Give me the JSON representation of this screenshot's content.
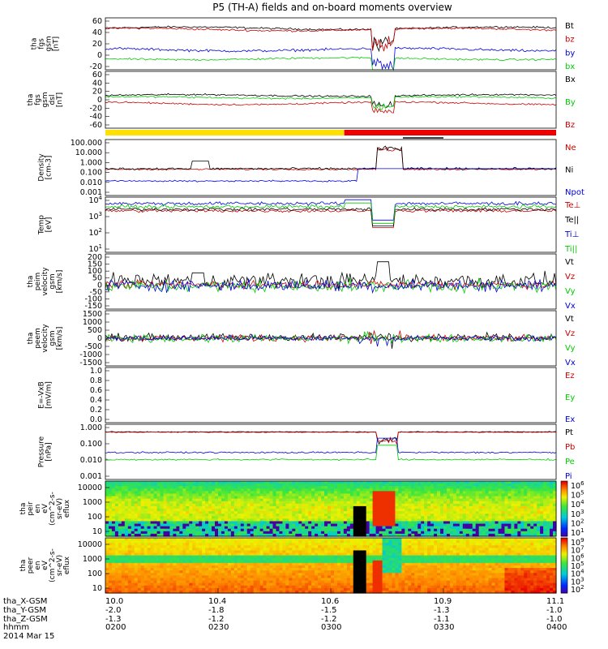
{
  "chart_data": {
    "type": "line",
    "title": "P5 (TH-A) fields and on-board moments overview",
    "panels": [
      {
        "id": "fgs_gsm",
        "ylabel": [
          "tha",
          "fgs",
          "gsm",
          "[nT]"
        ],
        "yticks": [
          "60",
          "40",
          "20",
          "0",
          "-20"
        ],
        "ylim": [
          -20,
          60
        ],
        "scale": "linear",
        "series": [
          {
            "name": "Bt",
            "color": "#000000",
            "base": 44,
            "amp": 2,
            "noise": 0.6
          },
          {
            "name": "bz",
            "color": "#cc0000",
            "base": 42,
            "amp": 2,
            "noise": 0.6
          },
          {
            "name": "by",
            "color": "#0000dd",
            "base": 11,
            "amp": 2,
            "noise": 0.8
          },
          {
            "name": "bx",
            "color": "#00cc00",
            "base": -3,
            "amp": 1.5,
            "noise": 0.6
          }
        ]
      },
      {
        "id": "fgs_dsl",
        "ylabel": [
          "tha",
          "fgs",
          "gsm",
          "dsl",
          "[nT]"
        ],
        "yticks": [
          "60",
          "40",
          "20",
          "0",
          "-20",
          "-40",
          "-60"
        ],
        "ylim": [
          -70,
          60
        ],
        "scale": "linear",
        "series": [
          {
            "name": "Bx",
            "color": "#000000",
            "base": 5,
            "amp": 2,
            "noise": 0.8
          },
          {
            "name": "By",
            "color": "#00cc00",
            "base": 0,
            "amp": 2,
            "noise": 0.8
          },
          {
            "name": "Bz",
            "color": "#cc0000",
            "base": -13,
            "amp": 3,
            "noise": 0.8
          }
        ]
      },
      {
        "id": "density",
        "ylabel": [
          "Density",
          "[cm-3]"
        ],
        "yticks": [
          "100.000",
          "10.000",
          "1.000",
          "0.100",
          "0.010",
          "0.001"
        ],
        "ylim": [
          0.001,
          100
        ],
        "scale": "log",
        "series": [
          {
            "name": "Ne",
            "color": "#cc0000",
            "base": 0.22,
            "noise": 0.08
          },
          {
            "name": "Ni",
            "color": "#000000",
            "base": 0.25,
            "noise": 0.12
          },
          {
            "name": "Npot",
            "color": "#0000dd",
            "base": 0.022,
            "noise": 0.02
          }
        ]
      },
      {
        "id": "temp",
        "ylabel": [
          "Temp",
          "[eV]"
        ],
        "yticks": [
          "10^4",
          "10^3",
          "10^2",
          "10^1"
        ],
        "ylim": [
          10,
          10000
        ],
        "scale": "log",
        "series": [
          {
            "name": "Te⊥",
            "color": "#cc0000",
            "base": 1800,
            "noise": 0.1
          },
          {
            "name": "Te||",
            "color": "#000000",
            "base": 2200,
            "noise": 0.1
          },
          {
            "name": "Ti⊥",
            "color": "#0000dd",
            "base": 4500,
            "noise": 0.12
          },
          {
            "name": "Ti||",
            "color": "#00cc00",
            "base": 3000,
            "noise": 0.12
          }
        ]
      },
      {
        "id": "peim_vel",
        "ylabel": [
          "tha",
          "peim",
          "velocity",
          "gsm",
          "[km/s]"
        ],
        "yticks": [
          "200",
          "150",
          "100",
          "50",
          "0",
          "-50",
          "-100",
          "-150"
        ],
        "ylim": [
          -150,
          200
        ],
        "scale": "linear",
        "series": [
          {
            "name": "Vt",
            "color": "#000000",
            "base": 30,
            "noise": 20
          },
          {
            "name": "Vz",
            "color": "#cc0000",
            "base": 5,
            "noise": 10
          },
          {
            "name": "Vy",
            "color": "#00cc00",
            "base": -5,
            "noise": 15
          },
          {
            "name": "Vx",
            "color": "#0000dd",
            "base": 0,
            "noise": 15
          }
        ]
      },
      {
        "id": "peem_vel",
        "ylabel": [
          "tha",
          "peem",
          "velocity",
          "gsm",
          "[km/s]"
        ],
        "yticks": [
          "1500",
          "1000",
          "500",
          "0",
          "-500",
          "-1000",
          "-1500"
        ],
        "ylim": [
          -1500,
          1500
        ],
        "scale": "linear",
        "series": [
          {
            "name": "Vt",
            "color": "#000000",
            "base": 60,
            "noise": 80
          },
          {
            "name": "Vz",
            "color": "#cc0000",
            "base": 0,
            "noise": 70
          },
          {
            "name": "Vy",
            "color": "#00cc00",
            "base": -20,
            "noise": 80
          },
          {
            "name": "Vx",
            "color": "#0000dd",
            "base": 0,
            "noise": 60
          }
        ]
      },
      {
        "id": "efield",
        "ylabel": [
          "E=-VxB",
          "[mV/m]"
        ],
        "yticks": [
          "1.0",
          "0.8",
          "0.6",
          "0.4",
          "0.2",
          "0.0"
        ],
        "ylim": [
          0,
          1
        ],
        "scale": "linear",
        "series": [
          {
            "name": "Ez",
            "color": "#cc0000"
          },
          {
            "name": "Ey",
            "color": "#00cc00"
          },
          {
            "name": "Ex",
            "color": "#0000dd"
          }
        ]
      },
      {
        "id": "pressure",
        "ylabel": [
          "Pressure",
          "[nPa]"
        ],
        "yticks": [
          "1.000",
          "0.100",
          "0.010",
          "0.001"
        ],
        "ylim": [
          0.001,
          3
        ],
        "scale": "log",
        "series": [
          {
            "name": "Pt",
            "color": "#000000",
            "base": 1.0,
            "noise": 0.03
          },
          {
            "name": "Pb",
            "color": "#cc0000",
            "base": 0.95,
            "noise": 0.03
          },
          {
            "name": "Pe",
            "color": "#00cc00",
            "base": 0.018,
            "noise": 0.06
          },
          {
            "name": "Pi",
            "color": "#0000dd",
            "base": 0.05,
            "noise": 0.06
          }
        ]
      },
      {
        "id": "peir_spec",
        "type": "heatmap",
        "ylabel": [
          "tha",
          "peir",
          "en",
          "eV",
          "(cm^2-s-",
          "sr-eV)",
          "eflux"
        ],
        "yticks": [
          "10000",
          "1000",
          "100",
          "10"
        ],
        "colorbar_ticks": [
          "10^6",
          "10^5",
          "10^4",
          "10^3",
          "10^2",
          "10^1"
        ],
        "colorbar_range": [
          10,
          1000000
        ]
      },
      {
        "id": "peer_spec",
        "type": "heatmap",
        "ylabel": [
          "tha",
          "peer",
          "en",
          "eV",
          "(cm^2-s-",
          "sr-eV)",
          "eflux"
        ],
        "yticks": [
          "10000",
          "1000",
          "100",
          "10"
        ],
        "colorbar_ticks": [
          "10^9",
          "10^7",
          "10^6",
          "10^5",
          "10^4",
          "10^3",
          "10^2"
        ],
        "colorbar_range": [
          100,
          1000000000
        ]
      }
    ],
    "flag_bar": {
      "yellow_until": 0.53,
      "red_from": 0.53
    },
    "event_interval": {
      "start": 0.537,
      "end": 0.66
    },
    "x_axis": {
      "rows": [
        {
          "label": "tha_X-GSM",
          "values": [
            "10.0",
            "10.4",
            "10.6",
            "10.9",
            "11.1"
          ]
        },
        {
          "label": "tha_Y-GSM",
          "values": [
            "-2.0",
            "-1.8",
            "-1.5",
            "-1.3",
            "-1.0"
          ]
        },
        {
          "label": "tha_Z-GSM",
          "values": [
            "-1.3",
            "-1.2",
            "-1.2",
            "-1.1",
            "-1.0"
          ]
        },
        {
          "label": "hhmm",
          "values": [
            "0200",
            "0230",
            "0300",
            "0330",
            "0400"
          ]
        }
      ],
      "date": "2014 Mar 15"
    }
  }
}
